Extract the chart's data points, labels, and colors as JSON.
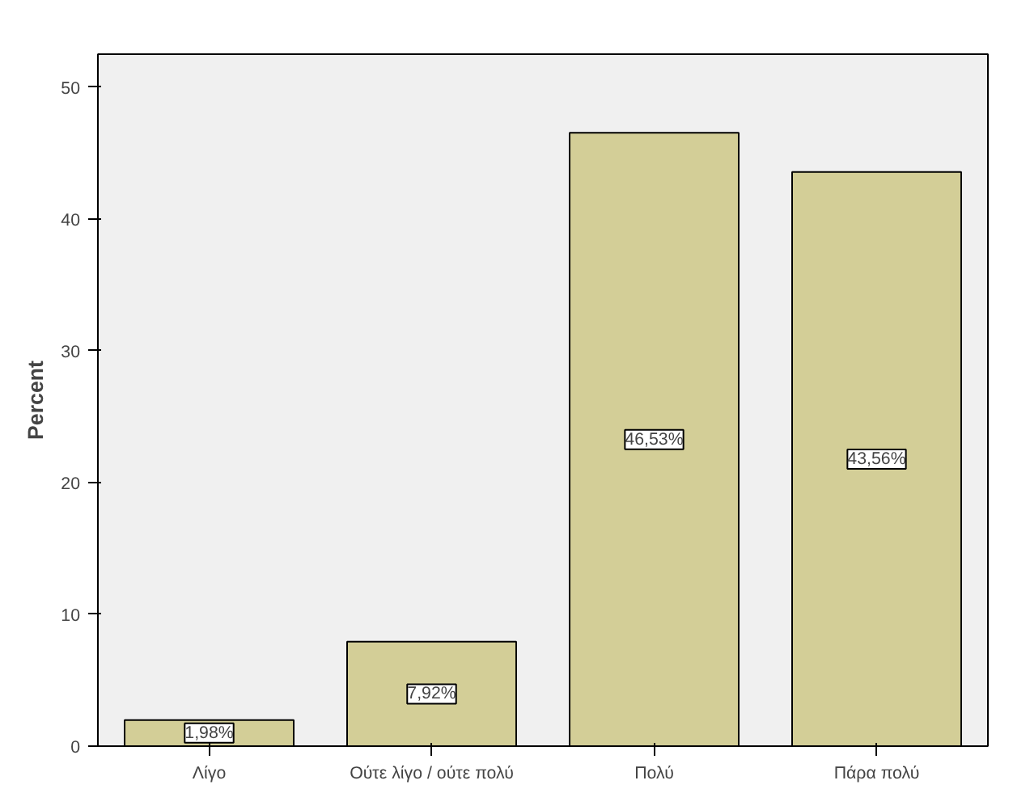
{
  "chart_data": {
    "type": "bar",
    "ylabel": "Percent",
    "categories": [
      "Λίγο",
      "Ούτε λίγο / ούτε πολύ",
      "Πολύ",
      "Πάρα πολύ"
    ],
    "values": [
      1.98,
      7.92,
      46.53,
      43.56
    ],
    "value_labels": [
      "1,98%",
      "7,92%",
      "46,53%",
      "43,56%"
    ],
    "color": "#d3ce97",
    "ylim": [
      0,
      52.5
    ],
    "yticks": [
      0,
      10,
      20,
      30,
      40,
      50
    ],
    "grid": false
  }
}
